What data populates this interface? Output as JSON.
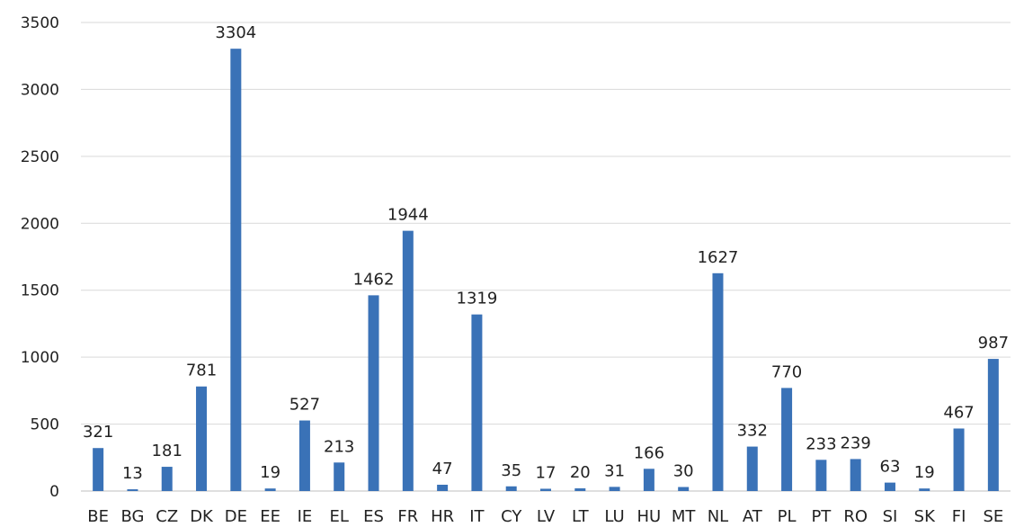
{
  "chart_data": {
    "type": "bar",
    "title": "",
    "xlabel": "",
    "ylabel": "",
    "categories": [
      "BE",
      "BG",
      "CZ",
      "DK",
      "DE",
      "EE",
      "IE",
      "EL",
      "ES",
      "FR",
      "HR",
      "IT",
      "CY",
      "LV",
      "LT",
      "LU",
      "HU",
      "MT",
      "NL",
      "AT",
      "PL",
      "PT",
      "RO",
      "SI",
      "SK",
      "FI",
      "SE"
    ],
    "values": [
      321,
      13,
      181,
      781,
      3304,
      19,
      527,
      213,
      1462,
      1944,
      47,
      1319,
      35,
      17,
      20,
      31,
      166,
      30,
      1627,
      332,
      770,
      233,
      239,
      63,
      19,
      467,
      987
    ],
    "ylim": [
      0,
      3500
    ],
    "yticks": [
      0,
      500,
      1000,
      1500,
      2000,
      2500,
      3000,
      3500
    ],
    "grid": true,
    "legend": "none",
    "bar_color": "#3a72b7"
  }
}
